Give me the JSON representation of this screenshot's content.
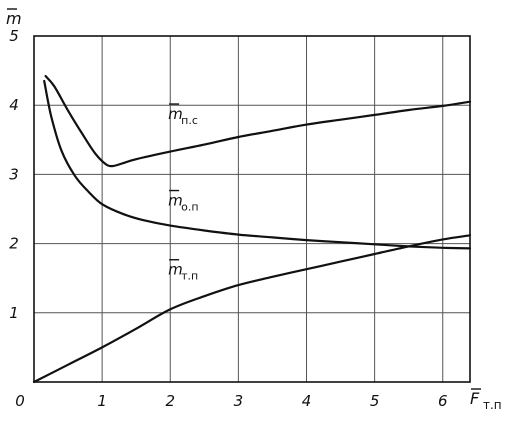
{
  "chart_data": {
    "type": "line",
    "xlim": [
      0,
      6.4
    ],
    "ylim": [
      0,
      5
    ],
    "grid": true,
    "y_axis_label": {
      "main": "m",
      "overbar": true,
      "sub": ""
    },
    "x_axis_label": {
      "main": "F",
      "overbar": true,
      "sub": "т.п"
    },
    "x_ticks": [
      {
        "value": 0,
        "label": "0"
      },
      {
        "value": 1,
        "label": "1"
      },
      {
        "value": 2,
        "label": "2"
      },
      {
        "value": 3,
        "label": "3"
      },
      {
        "value": 4,
        "label": "4"
      },
      {
        "value": 5,
        "label": "5"
      },
      {
        "value": 6,
        "label": "6"
      }
    ],
    "y_ticks": [
      {
        "value": 1,
        "label": "1"
      },
      {
        "value": 2,
        "label": "2"
      },
      {
        "value": 3,
        "label": "3"
      },
      {
        "value": 4,
        "label": "4"
      },
      {
        "value": 5,
        "label": "5"
      }
    ],
    "series": [
      {
        "name": "m п.с",
        "label_main": "m",
        "label_sub": "п.с",
        "label_at": [
          1.0,
          3.8
        ],
        "x": [
          0.17,
          0.3,
          0.5,
          0.7,
          0.9,
          1.05,
          1.15,
          1.3,
          1.5,
          2.0,
          2.5,
          3.0,
          3.5,
          4.0,
          4.5,
          5.0,
          5.5,
          6.0,
          6.4
        ],
        "y": [
          4.42,
          4.27,
          3.92,
          3.6,
          3.3,
          3.15,
          3.12,
          3.16,
          3.22,
          3.33,
          3.43,
          3.54,
          3.63,
          3.72,
          3.79,
          3.86,
          3.93,
          3.99,
          4.05
        ]
      },
      {
        "name": "m о.п",
        "label_main": "m",
        "label_sub": "о.п",
        "label_at": [
          1.0,
          2.55
        ],
        "x": [
          0.15,
          0.25,
          0.4,
          0.6,
          0.8,
          1.0,
          1.3,
          1.6,
          2.0,
          2.5,
          3.0,
          3.5,
          4.0,
          4.5,
          5.0,
          5.5,
          6.0,
          6.4
        ],
        "y": [
          4.35,
          3.85,
          3.35,
          2.98,
          2.75,
          2.57,
          2.43,
          2.34,
          2.26,
          2.19,
          2.13,
          2.09,
          2.05,
          2.02,
          1.99,
          1.96,
          1.94,
          1.93
        ]
      },
      {
        "name": "m т.п",
        "label_main": "m",
        "label_sub": "т.п",
        "label_at": [
          1.0,
          1.55
        ],
        "x": [
          0,
          0.5,
          1.0,
          1.5,
          2.0,
          2.5,
          3.0,
          3.5,
          4.0,
          4.5,
          5.0,
          5.5,
          6.0,
          6.4
        ],
        "y": [
          0,
          0.25,
          0.5,
          0.77,
          1.05,
          1.24,
          1.4,
          1.52,
          1.63,
          1.74,
          1.85,
          1.96,
          2.06,
          2.12
        ]
      }
    ]
  }
}
